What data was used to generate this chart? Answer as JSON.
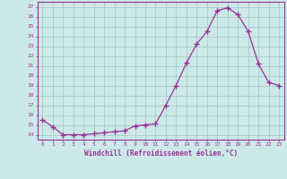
{
  "x": [
    0,
    1,
    2,
    3,
    4,
    5,
    6,
    7,
    8,
    9,
    10,
    11,
    12,
    13,
    14,
    15,
    16,
    17,
    18,
    19,
    20,
    21,
    22,
    23
  ],
  "y": [
    15.5,
    14.8,
    14.0,
    14.0,
    14.0,
    14.1,
    14.2,
    14.3,
    14.4,
    14.9,
    15.0,
    15.1,
    17.0,
    19.0,
    21.3,
    23.2,
    24.5,
    26.6,
    26.9,
    26.2,
    24.5,
    21.2,
    19.3,
    19.0
  ],
  "line_color": "#993399",
  "marker": "+",
  "marker_size": 4,
  "bg_color": "#cde8e8",
  "grid_color": "#aacccc",
  "xlabel": "Windchill (Refroidissement éolien,°C)",
  "ylabel_ticks": [
    14,
    15,
    16,
    17,
    18,
    19,
    20,
    21,
    22,
    23,
    24,
    25,
    26,
    27
  ],
  "xlim": [
    -0.5,
    23.5
  ],
  "ylim": [
    13.5,
    27.5
  ]
}
